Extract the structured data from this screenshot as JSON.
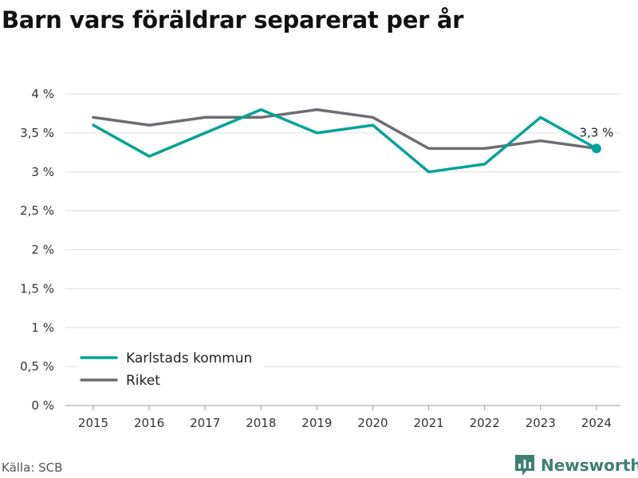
{
  "title": "Barn vars föräldrar separerat per år",
  "source": "Källa: SCB",
  "brand": {
    "name": "Newsworthy",
    "color": "#3e7f73",
    "logo_icon": "bar-chart-speech-bubble-icon"
  },
  "chart_data": {
    "type": "line",
    "x": [
      2015,
      2016,
      2017,
      2018,
      2019,
      2020,
      2021,
      2022,
      2023,
      2024
    ],
    "series": [
      {
        "name": "Karlstads kommun",
        "color": "#00a396",
        "values": [
          3.6,
          3.2,
          3.5,
          3.8,
          3.5,
          3.6,
          3.0,
          3.1,
          3.7,
          3.3
        ]
      },
      {
        "name": "Riket",
        "color": "#6d6c72",
        "values": [
          3.7,
          3.6,
          3.7,
          3.7,
          3.8,
          3.7,
          3.3,
          3.3,
          3.4,
          3.3
        ]
      }
    ],
    "ylim": [
      0,
      4
    ],
    "y_ticks": [
      {
        "value": 0,
        "label": "0 %"
      },
      {
        "value": 0.5,
        "label": "0,5 %"
      },
      {
        "value": 1,
        "label": "1 %"
      },
      {
        "value": 1.5,
        "label": "1,5 %"
      },
      {
        "value": 2,
        "label": "2 %"
      },
      {
        "value": 2.5,
        "label": "2,5 %"
      },
      {
        "value": 3,
        "label": "3 %"
      },
      {
        "value": 3.5,
        "label": "3,5 %"
      },
      {
        "value": 4,
        "label": "4 %"
      }
    ],
    "x_tick_labels": [
      "2015",
      "2016",
      "2017",
      "2018",
      "2019",
      "2020",
      "2021",
      "2022",
      "2023",
      "2024"
    ],
    "annotation": {
      "series": 0,
      "x": 2024,
      "value": 3.3,
      "label": "3,3 %"
    },
    "grid": "horizontal",
    "legend_position": "bottom-left",
    "xlabel": "",
    "ylabel": ""
  }
}
